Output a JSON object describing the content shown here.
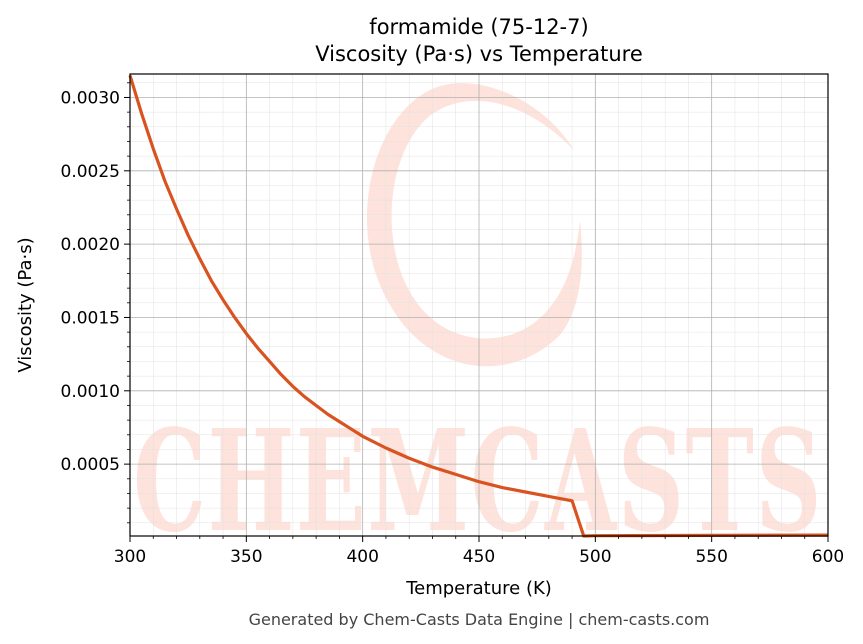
{
  "chart_data": {
    "type": "line",
    "title": "formamide (75-12-7)",
    "subtitle": "Viscosity (Pa·s) vs Temperature",
    "xlabel": "Temperature (K)",
    "ylabel": "Viscosity (Pa·s)",
    "xlim": [
      300,
      600
    ],
    "ylim": [
      1e-05,
      0.00316
    ],
    "xticks": [
      300,
      350,
      400,
      450,
      500,
      550,
      600
    ],
    "xtick_labels": [
      "300",
      "350",
      "400",
      "450",
      "500",
      "550",
      "600"
    ],
    "yticks": [
      0.0005,
      0.001,
      0.0015,
      0.002,
      0.0025,
      0.003
    ],
    "ytick_labels": [
      "0.0005",
      "0.0010",
      "0.0015",
      "0.0020",
      "0.0025",
      "0.0030"
    ],
    "grid": true,
    "series": [
      {
        "color": "#d95321",
        "x": [
          300,
          305,
          310,
          315,
          320,
          325,
          330,
          335,
          340,
          345,
          350,
          355,
          360,
          365,
          370,
          375,
          380,
          385,
          390,
          395,
          400,
          410,
          420,
          430,
          440,
          450,
          460,
          470,
          480,
          490,
          495,
          500,
          550,
          600
        ],
        "y": [
          0.00315,
          0.00289,
          0.00265,
          0.00243,
          0.00224,
          0.00206,
          0.0019,
          0.00175,
          0.00162,
          0.0015,
          0.00139,
          0.00129,
          0.0012,
          0.00111,
          0.00103,
          0.00096,
          0.0009,
          0.00084,
          0.00079,
          0.00074,
          0.00069,
          0.00061,
          0.00054,
          0.00048,
          0.00043,
          0.00038,
          0.00034,
          0.00031,
          0.00028,
          0.00025,
          1e-05,
          1.2e-05,
          1.4e-05,
          1.6e-05
        ]
      }
    ]
  },
  "watermark": {
    "text": "CHEMCASTS",
    "color": "#fde3dc"
  },
  "footer": "Generated by Chem-Casts Data Engine | chem-casts.com"
}
